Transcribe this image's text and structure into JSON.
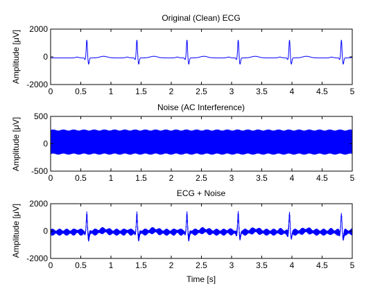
{
  "figure": {
    "background": "#ffffff",
    "line_color": "#0000ff",
    "axis_color": "#000000"
  },
  "chart_data": [
    {
      "type": "line",
      "title": "Original (Clean) ECG",
      "xlabel": "",
      "ylabel": "Amplitude [μV]",
      "xlim": [
        0,
        5
      ],
      "ylim": [
        -2000,
        2000
      ],
      "xticks": [
        "0",
        "0.5",
        "1",
        "1.5",
        "2",
        "2.5",
        "3",
        "3.5",
        "4",
        "4.5",
        "5"
      ],
      "yticks": [
        "-2000",
        "0",
        "2000"
      ],
      "signal": {
        "kind": "ecg",
        "baseline": -80,
        "r_peak_times": [
          0.6,
          1.43,
          2.26,
          3.11,
          3.96,
          4.82
        ],
        "r_peak_amplitude": 1300,
        "s_wave_amplitude": -450,
        "t_wave_amplitude": 120
      }
    },
    {
      "type": "line",
      "title": "Noise (AC Interference)",
      "xlabel": "",
      "ylabel": "Amplitude [μV]",
      "xlim": [
        0,
        5
      ],
      "ylim": [
        -500,
        500
      ],
      "xticks": [
        "0",
        "0.5",
        "1",
        "1.5",
        "2",
        "2.5",
        "3",
        "3.5",
        "4",
        "4.5",
        "5"
      ],
      "yticks": [
        "-500",
        "0",
        "500"
      ],
      "signal": {
        "kind": "ac_noise",
        "amplitude": 250,
        "frequency_hz": 50
      }
    },
    {
      "type": "line",
      "title": "ECG + Noise",
      "xlabel": "Time [s]",
      "ylabel": "Amplitude [μV]",
      "xlim": [
        0,
        5
      ],
      "ylim": [
        -2000,
        2000
      ],
      "xticks": [
        "0",
        "0.5",
        "1",
        "1.5",
        "2",
        "2.5",
        "3",
        "3.5",
        "4",
        "4.5",
        "5"
      ],
      "yticks": [
        "-2000",
        "0",
        "2000"
      ],
      "signal": {
        "kind": "ecg_plus_noise",
        "baseline": -80,
        "r_peak_times": [
          0.6,
          1.43,
          2.26,
          3.11,
          3.96,
          4.82
        ],
        "r_peak_amplitude": 1300,
        "s_wave_amplitude": -450,
        "t_wave_amplitude": 120,
        "noise_amplitude": 250
      }
    }
  ]
}
